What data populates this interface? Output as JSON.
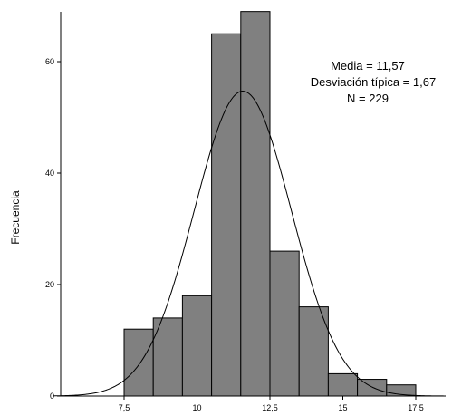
{
  "chart_data": {
    "type": "bar",
    "subtype": "histogram",
    "ylabel": "Frecuencia",
    "xlabel": "",
    "bin_width": 1,
    "bins": [
      {
        "x0": 7.5,
        "x1": 8.5,
        "count": 12
      },
      {
        "x0": 8.5,
        "x1": 9.5,
        "count": 14
      },
      {
        "x0": 9.5,
        "x1": 10.5,
        "count": 18
      },
      {
        "x0": 10.5,
        "x1": 11.5,
        "count": 65
      },
      {
        "x0": 11.5,
        "x1": 12.5,
        "count": 69
      },
      {
        "x0": 12.5,
        "x1": 13.5,
        "count": 26
      },
      {
        "x0": 13.5,
        "x1": 14.5,
        "count": 16
      },
      {
        "x0": 14.5,
        "x1": 15.5,
        "count": 4
      },
      {
        "x0": 15.5,
        "x1": 16.5,
        "count": 3
      },
      {
        "x0": 16.5,
        "x1": 17.5,
        "count": 2
      }
    ],
    "xlim": [
      5,
      18.5
    ],
    "ylim": [
      0,
      69
    ],
    "x_ticks": [
      7.5,
      10,
      12.5,
      15,
      17.5
    ],
    "x_tick_labels": [
      "7,5",
      "10",
      "12,5",
      "15",
      "17,5"
    ],
    "y_ticks": [
      0,
      20,
      40,
      60
    ],
    "y_tick_labels": [
      "0",
      "20",
      "40",
      "60"
    ],
    "normal_curve": {
      "mean": 11.57,
      "sd": 1.67,
      "n": 229
    },
    "stats_lines": [
      "Media = 11,57",
      "Desviación típica = 1,67",
      "N = 229"
    ],
    "bar_color": "#808080",
    "grid": false
  }
}
